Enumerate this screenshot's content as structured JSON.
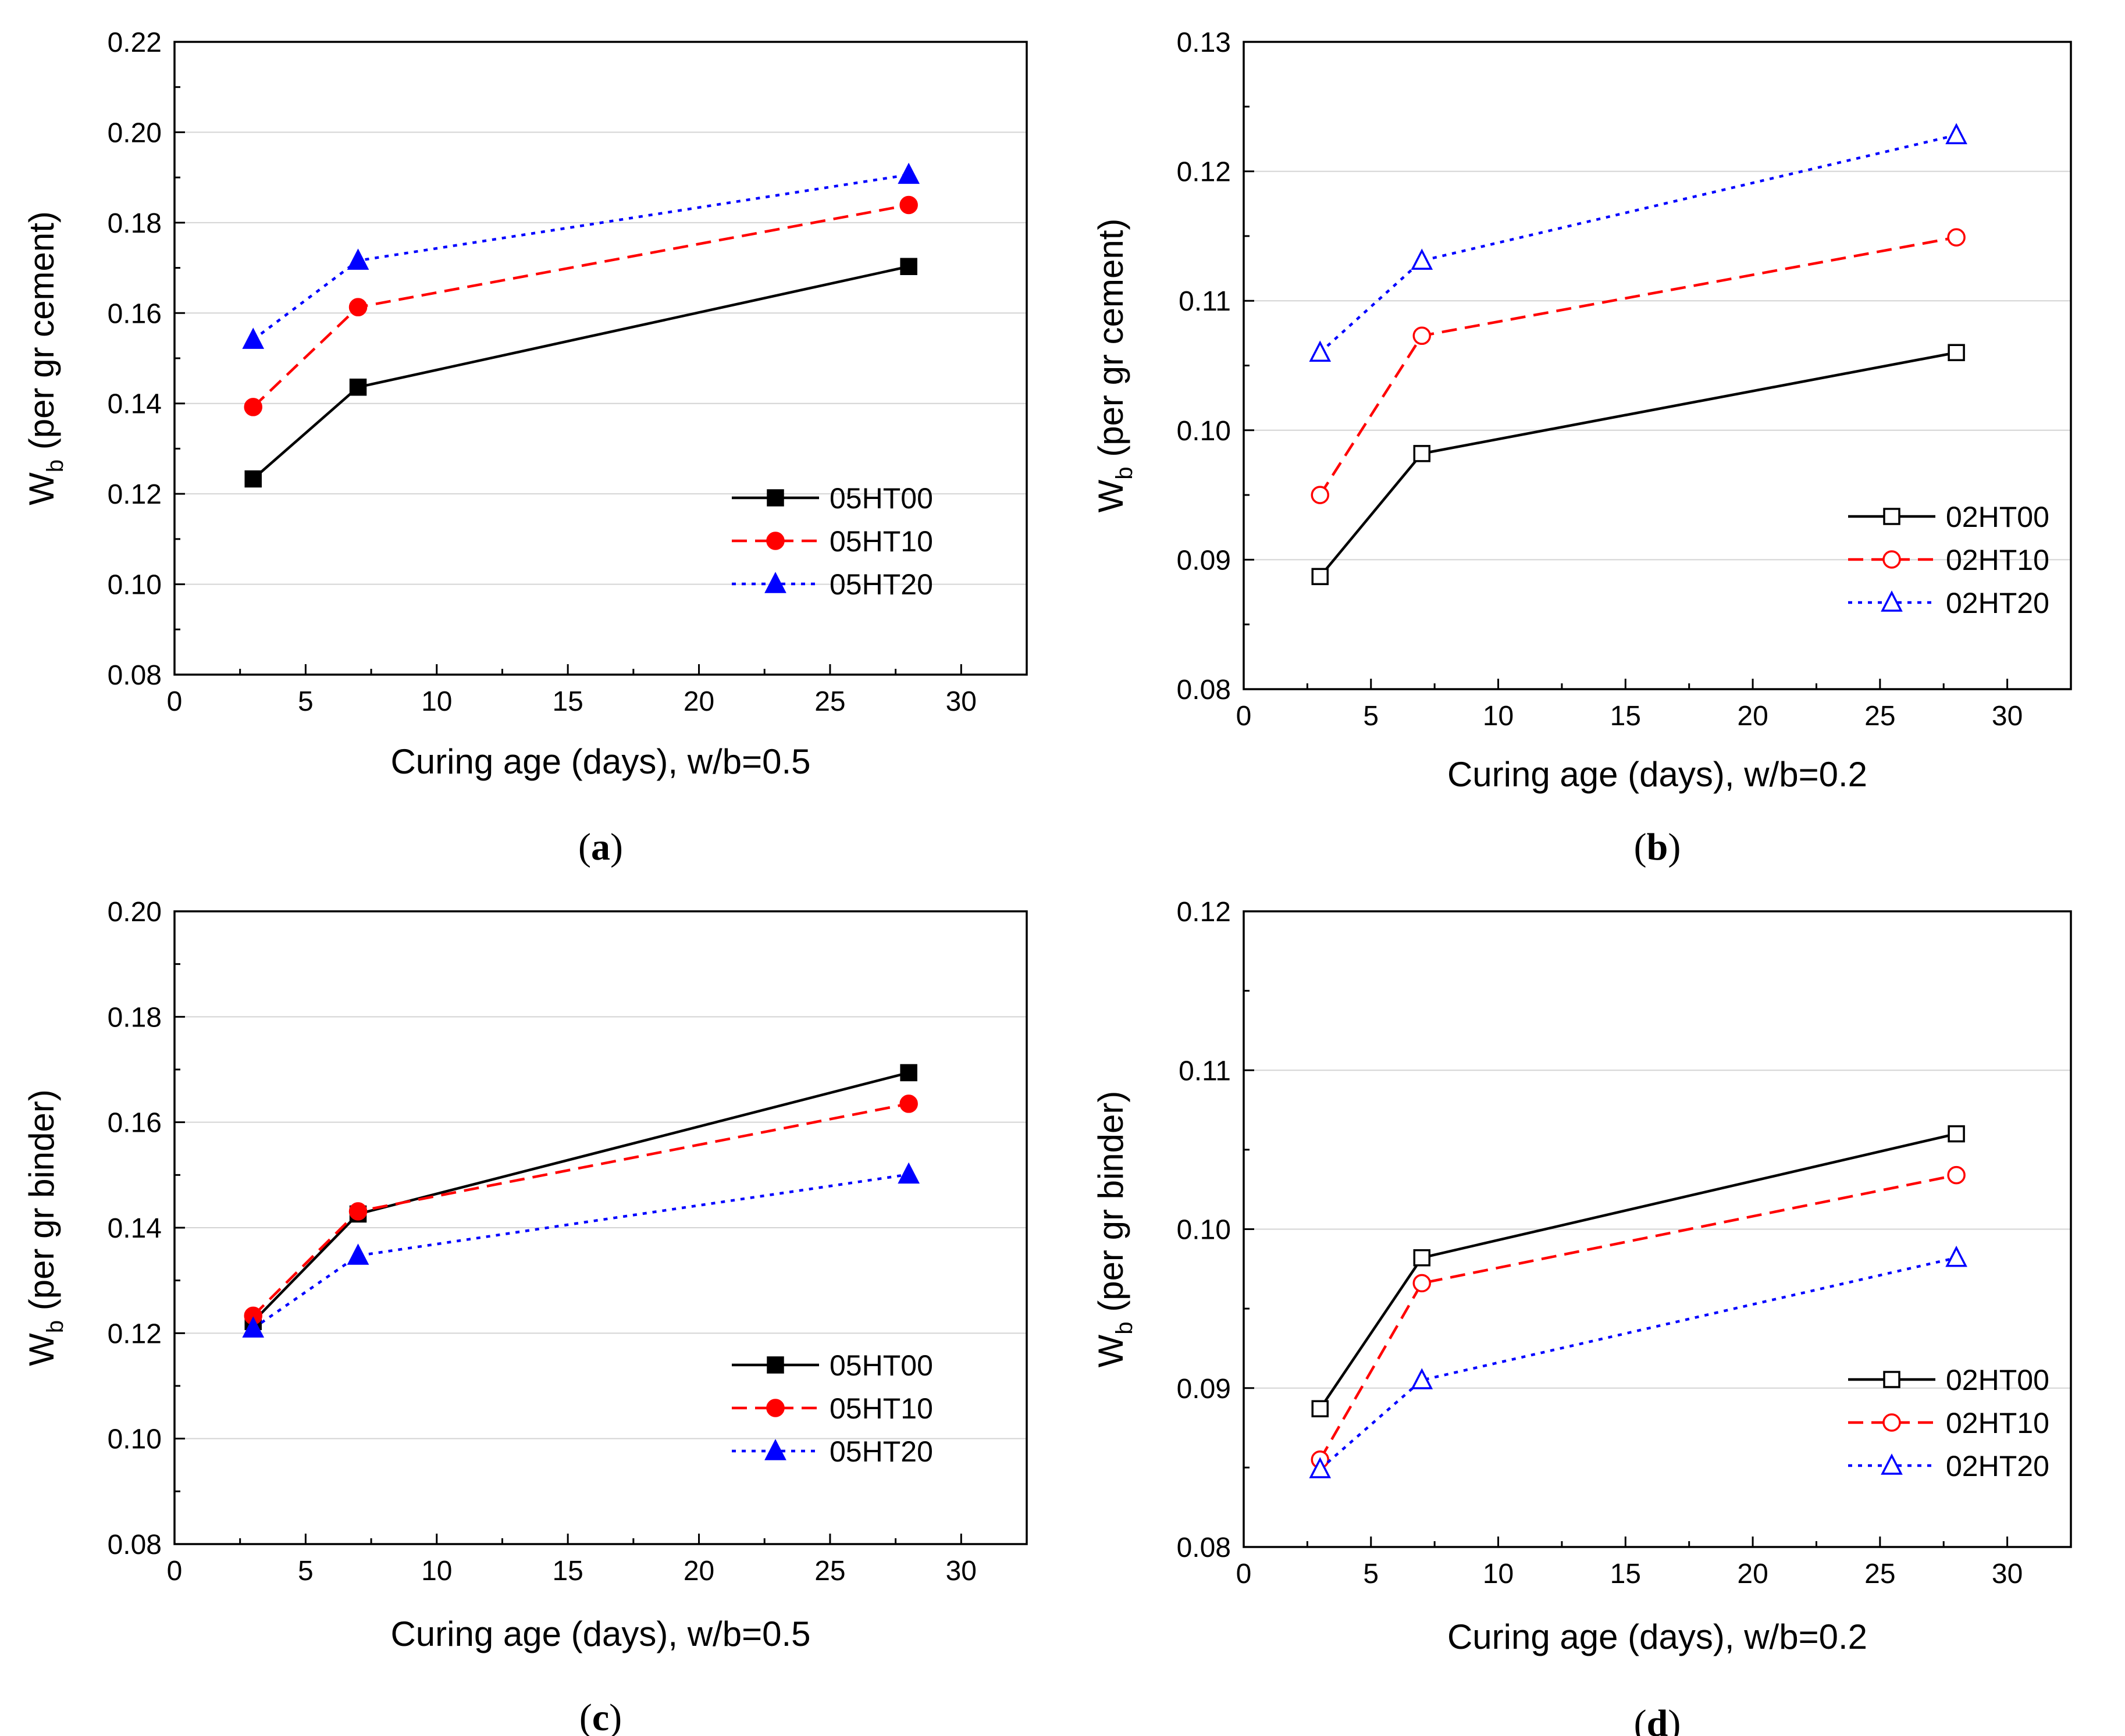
{
  "chart_data": [
    {
      "type": "line",
      "panel_label": "a",
      "xlabel": "Curing age (days), w/b=0.5",
      "ylabel_main": "W",
      "ylabel_sub": "b",
      "ylabel_rest": " (per gr cement)",
      "xlim": [
        0,
        32.5
      ],
      "ylim": [
        0.08,
        0.22
      ],
      "xticks": [
        "0",
        "5",
        "10",
        "15",
        "20",
        "25",
        "30"
      ],
      "yticks": [
        "0.08",
        "0.10",
        "0.12",
        "0.14",
        "0.16",
        "0.18",
        "0.20",
        "0.22"
      ],
      "grid": true,
      "legend_position": "bottom-right",
      "x": [
        3,
        7,
        28
      ],
      "series": [
        {
          "name": "05HT00",
          "values": [
            0.1233,
            0.1436,
            0.1703
          ],
          "color": "#000000",
          "dash": "solid",
          "marker": "square",
          "filled": true
        },
        {
          "name": "05HT10",
          "values": [
            0.1392,
            0.1613,
            0.1839
          ],
          "color": "#ff0000",
          "dash": "dash",
          "marker": "circle",
          "filled": true
        },
        {
          "name": "05HT20",
          "values": [
            0.1541,
            0.1716,
            0.1906
          ],
          "color": "#0000ff",
          "dash": "dot",
          "marker": "triangle",
          "filled": true
        }
      ]
    },
    {
      "type": "line",
      "panel_label": "b",
      "xlabel": "Curing age (days), w/b=0.2",
      "ylabel_main": "W",
      "ylabel_sub": "b",
      "ylabel_rest": " (per gr cement)",
      "xlim": [
        0,
        32.5
      ],
      "ylim": [
        0.08,
        0.13
      ],
      "xticks": [
        "0",
        "5",
        "10",
        "15",
        "20",
        "25",
        "30"
      ],
      "yticks": [
        "0.08",
        "0.09",
        "0.10",
        "0.11",
        "0.12",
        "0.13"
      ],
      "grid": true,
      "legend_position": "bottom-right",
      "x": [
        3,
        7,
        28
      ],
      "series": [
        {
          "name": "02HT00",
          "values": [
            0.0887,
            0.0982,
            0.106
          ],
          "color": "#000000",
          "dash": "solid",
          "marker": "square",
          "filled": false
        },
        {
          "name": "02HT10",
          "values": [
            0.095,
            0.1073,
            0.1149
          ],
          "color": "#ff0000",
          "dash": "dash",
          "marker": "circle",
          "filled": false
        },
        {
          "name": "02HT20",
          "values": [
            0.106,
            0.1131,
            0.1228
          ],
          "color": "#0000ff",
          "dash": "dot",
          "marker": "triangle",
          "filled": false
        }
      ]
    },
    {
      "type": "line",
      "panel_label": "c",
      "xlabel": "Curing age (days), w/b=0.5",
      "ylabel_main": "W",
      "ylabel_sub": "b",
      "ylabel_rest": " (per gr binder)",
      "xlim": [
        0,
        32.5
      ],
      "ylim": [
        0.08,
        0.2
      ],
      "xticks": [
        "0",
        "5",
        "10",
        "15",
        "20",
        "25",
        "30"
      ],
      "yticks": [
        "0.08",
        "0.10",
        "0.12",
        "0.14",
        "0.16",
        "0.18",
        "0.20"
      ],
      "grid": true,
      "legend_position": "bottom-right",
      "x": [
        3,
        7,
        28
      ],
      "series": [
        {
          "name": "05HT00",
          "values": [
            0.1222,
            0.1426,
            0.1694
          ],
          "color": "#000000",
          "dash": "solid",
          "marker": "square",
          "filled": true
        },
        {
          "name": "05HT10",
          "values": [
            0.1233,
            0.1431,
            0.1635
          ],
          "color": "#ff0000",
          "dash": "dash",
          "marker": "circle",
          "filled": true
        },
        {
          "name": "05HT20",
          "values": [
            0.1209,
            0.1347,
            0.1501
          ],
          "color": "#0000ff",
          "dash": "dot",
          "marker": "triangle",
          "filled": true
        }
      ]
    },
    {
      "type": "line",
      "panel_label": "d",
      "xlabel": "Curing age (days), w/b=0.2",
      "ylabel_main": "W",
      "ylabel_sub": "b",
      "ylabel_rest": " (per gr binder)",
      "xlim": [
        0,
        32.5
      ],
      "ylim": [
        0.08,
        0.12
      ],
      "xticks": [
        "0",
        "5",
        "10",
        "15",
        "20",
        "25",
        "30"
      ],
      "yticks": [
        "0.08",
        "0.09",
        "0.10",
        "0.11",
        "0.12"
      ],
      "grid": true,
      "legend_position": "bottom-right",
      "x": [
        3,
        7,
        28
      ],
      "series": [
        {
          "name": "02HT00",
          "values": [
            0.0887,
            0.0982,
            0.106
          ],
          "color": "#000000",
          "dash": "solid",
          "marker": "square",
          "filled": false
        },
        {
          "name": "02HT10",
          "values": [
            0.0855,
            0.0966,
            0.1034
          ],
          "color": "#ff0000",
          "dash": "dash",
          "marker": "circle",
          "filled": false
        },
        {
          "name": "02HT20",
          "values": [
            0.0849,
            0.0905,
            0.0982
          ],
          "color": "#0000ff",
          "dash": "dot",
          "marker": "triangle",
          "filled": false
        }
      ]
    }
  ]
}
